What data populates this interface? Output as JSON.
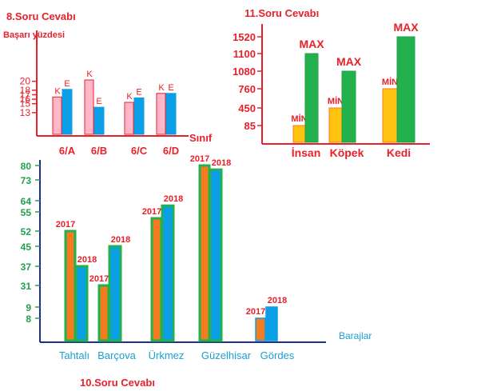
{
  "colors": {
    "red": "#e8202a",
    "pink": "#ffb6c8",
    "blue": "#0a9fe6",
    "green": "#23b14d",
    "orange": "#f47c20",
    "yellow": "#ffc20e",
    "dark_green": "#22a04a",
    "navy": "#1c2f8a",
    "teal": "#1a9fd4"
  },
  "chart_data": [
    {
      "id": "chart8",
      "type": "bar",
      "title": "8.Soru Cevabı",
      "ylabel": "Başarı yüzdesi",
      "xlabel": "Sınıf",
      "yticks": [
        20,
        18,
        17,
        16,
        15,
        13
      ],
      "categories": [
        "6/A",
        "6/B",
        "6/C",
        "6/D"
      ],
      "series": [
        {
          "name": "K",
          "values": [
            16.5,
            20.3,
            15.3,
            17.3
          ]
        },
        {
          "name": "E",
          "values": [
            18.2,
            14.2,
            16.3,
            17.3
          ]
        }
      ]
    },
    {
      "id": "chart11",
      "type": "bar",
      "title": "11.Soru Cevabı",
      "yticks": [
        1520,
        1100,
        1080,
        760,
        450,
        85
      ],
      "categories": [
        "İnsan",
        "Köpek",
        "Kedi"
      ],
      "series": [
        {
          "name": "MİN",
          "values": [
            85,
            450,
            760
          ]
        },
        {
          "name": "MAX",
          "values": [
            1100,
            1080,
            1520
          ]
        }
      ]
    },
    {
      "id": "chart10",
      "type": "bar",
      "title": "10.Soru Cevabı",
      "xlabel": "Barajlar",
      "yticks": [
        80,
        73,
        64,
        55,
        52,
        45,
        37,
        31,
        9,
        8
      ],
      "categories": [
        "Tahtalı",
        "Barçova",
        "Ürkmez",
        "Güzelhisar",
        "Gördes"
      ],
      "series": [
        {
          "name": "2017",
          "values": [
            52,
            31,
            54,
            80,
            8
          ]
        },
        {
          "name": "2018",
          "values": [
            37,
            45,
            60,
            78,
            9
          ]
        }
      ]
    }
  ]
}
